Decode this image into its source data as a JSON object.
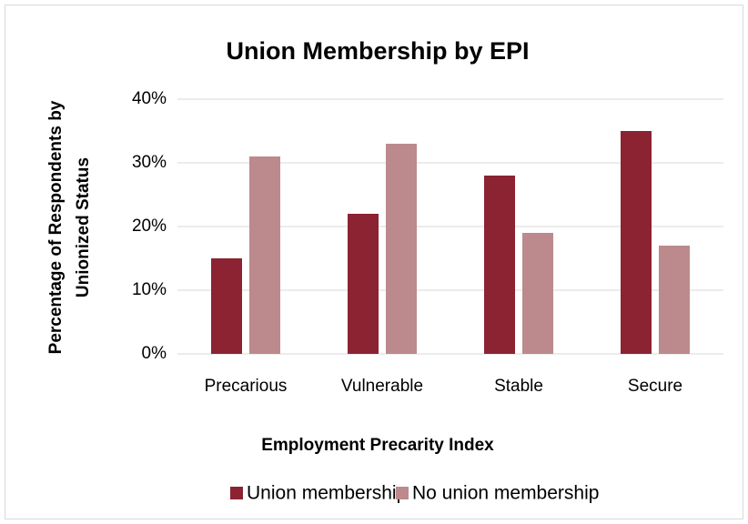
{
  "chart_data": {
    "type": "bar",
    "title": "Union Membership by EPI",
    "xlabel": "Employment Precarity Index",
    "ylabel": [
      "Percentage of Respondents by",
      "Unionized Status"
    ],
    "categories": [
      "Precarious",
      "Vulnerable",
      "Stable",
      "Secure"
    ],
    "series": [
      {
        "name": "Union membership",
        "color": "#8b2332",
        "values": [
          15,
          22,
          28,
          35
        ]
      },
      {
        "name": "No union membership",
        "color": "#bc8a8c",
        "values": [
          31,
          33,
          19,
          17
        ]
      }
    ],
    "ylim": [
      0,
      40
    ],
    "yticks": [
      {
        "value": 0,
        "label": "0%"
      },
      {
        "value": 10,
        "label": "10%"
      },
      {
        "value": 20,
        "label": "20%"
      },
      {
        "value": 30,
        "label": "30%"
      },
      {
        "value": 40,
        "label": "40%"
      }
    ],
    "grid": true,
    "legend": "bottom"
  }
}
